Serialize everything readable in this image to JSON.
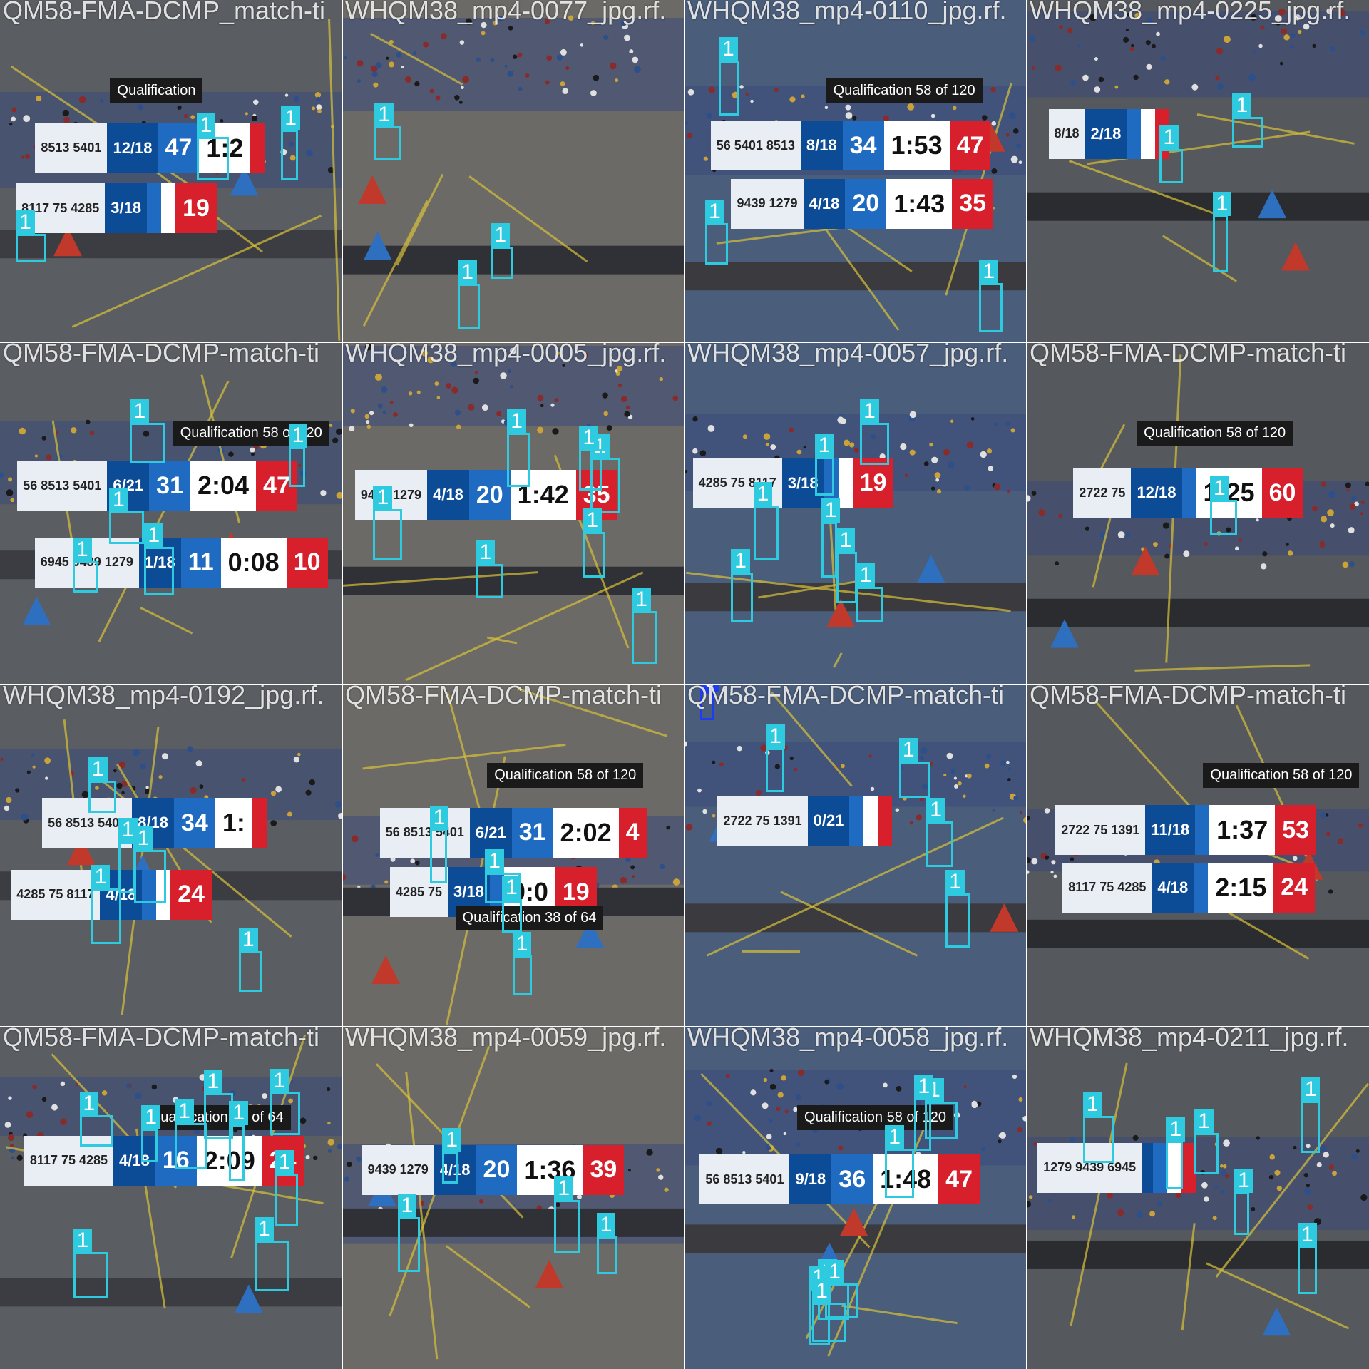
{
  "colors": {
    "box": "#2ecbe0",
    "box_alt": "#1e3df0",
    "blue": "#1f6bc2",
    "red": "#d8202c"
  },
  "detection_label": "1",
  "alt_label": "0",
  "tiles": [
    {
      "filename": "QM58-FMA-DCMP_match-ti",
      "boards": [
        {
          "blue_score": "47",
          "time": "1:2",
          "red_score": "",
          "teams": "8513 5401",
          "frac": "12/18"
        },
        {
          "red_score": "19",
          "time": "",
          "blue_score": "",
          "teams": "8117 75 4285",
          "frac": "3/18"
        }
      ],
      "banners": [
        "Qualification"
      ],
      "boxes": 3
    },
    {
      "filename": "WHQM38_mp4-0077_jpg.rf.",
      "boards": [],
      "banners": [],
      "boxes": 3
    },
    {
      "filename": "WHQM38_mp4-0110_jpg.rf.",
      "boards": [
        {
          "blue_score": "34",
          "time": "1:53",
          "red_score": "47",
          "teams": "56 5401 8513",
          "frac": "8/18"
        },
        {
          "blue_score": "20",
          "time": "1:43",
          "red_score": "35",
          "teams": "9439 1279",
          "frac": "4/18"
        }
      ],
      "banners": [
        "Qualification 58 of 120"
      ],
      "boxes": 3
    },
    {
      "filename": "WHQM38_mp4-0225_jpg.rf.",
      "boards": [
        {
          "blue_score": "",
          "time": "",
          "red_score": "",
          "teams": "8/18",
          "frac": "2/18"
        }
      ],
      "banners": [],
      "boxes": 3
    },
    {
      "filename": "QM58-FMA-DCMP-match-ti",
      "boards": [
        {
          "blue_score": "31",
          "time": "2:04",
          "red_score": "47",
          "teams": "56 8513 5401",
          "frac": "6/21"
        },
        {
          "blue_score": "11",
          "time": "0:08",
          "red_score": "10",
          "teams": "6945 9439 1279",
          "frac": "1/18"
        }
      ],
      "banners": [
        "Qualification 58 of 120"
      ],
      "boxes": 5
    },
    {
      "filename": "WHQM38_mp4-0005_jpg.rf.",
      "boards": [
        {
          "blue_score": "20",
          "time": "1:42",
          "red_score": "35",
          "teams": "9439 1279",
          "frac": "4/18"
        }
      ],
      "banners": [],
      "boxes": 7
    },
    {
      "filename": "WHQM38_mp4-0057_jpg.rf.",
      "boards": [
        {
          "red_score": "19",
          "time": "",
          "blue_score": "",
          "teams": "4285 75 8117",
          "frac": "3/18"
        }
      ],
      "banners": [],
      "boxes": 7
    },
    {
      "filename": "QM58-FMA-DCMP-match-ti",
      "boards": [
        {
          "blue_score": "",
          "time": "1:25",
          "red_score": "60",
          "teams": "2722 75",
          "frac": "12/18"
        }
      ],
      "banners": [
        "Qualification 58 of 120"
      ],
      "boxes": 1
    },
    {
      "filename": "WHQM38_mp4-0192_jpg.rf.",
      "boards": [
        {
          "blue_score": "34",
          "time": "1:",
          "red_score": "",
          "teams": "56 8513 5401",
          "frac": "8/18"
        },
        {
          "red_score": "24",
          "time": "",
          "blue_score": "",
          "teams": "4285 75 8117",
          "frac": "4/18"
        }
      ],
      "banners": [],
      "boxes": 5
    },
    {
      "filename": "QM58-FMA-DCMP-match-ti",
      "boards": [
        {
          "blue_score": "31",
          "time": "2:02",
          "red_score": "4",
          "teams": "56 8513 5401",
          "frac": "6/21"
        },
        {
          "red_score": "19",
          "time": "0:0",
          "blue_score": "",
          "teams": "4285 75",
          "frac": "3/18"
        }
      ],
      "banners": [
        "Qualification 58 of 120",
        "Qualification 38 of 64"
      ],
      "boxes": 4
    },
    {
      "filename": "QM58-FMA-DCMP-match-ti",
      "boards": [
        {
          "blue_score": "",
          "time": "",
          "red_score": "",
          "teams": "2722 75 1391",
          "frac": "0/21"
        }
      ],
      "banners": [],
      "boxes": 4
    },
    {
      "filename": "QM58-FMA-DCMP-match-ti",
      "boards": [
        {
          "blue_score": "",
          "time": "1:37",
          "red_score": "53",
          "teams": "2722 75 1391",
          "frac": "11/18"
        },
        {
          "blue_score": "",
          "time": "2:15",
          "red_score": "24",
          "teams": "8117 75 4285",
          "frac": "4/18"
        }
      ],
      "banners": [
        "Qualification 58 of 120"
      ],
      "boxes": 0
    },
    {
      "filename": "QM58-FMA-DCMP-match-ti",
      "boards": [
        {
          "blue_score": "16",
          "time": "2:09",
          "red_score": "24",
          "teams": "8117 75 4285",
          "frac": "4/18"
        }
      ],
      "banners": [
        "Qualification 38 of 64"
      ],
      "boxes": 9
    },
    {
      "filename": "WHQM38_mp4-0059_jpg.rf.",
      "boards": [
        {
          "blue_score": "20",
          "time": "1:36",
          "red_score": "39",
          "teams": "9439 1279",
          "frac": "4/18"
        }
      ],
      "banners": [],
      "boxes": 4
    },
    {
      "filename": "WHQM38_mp4-0058_jpg.rf.",
      "boards": [
        {
          "blue_score": "36",
          "time": "1:48",
          "red_score": "47",
          "teams": "56 8513 5401",
          "frac": "9/18"
        }
      ],
      "banners": [
        "Qualification 58 of 120"
      ],
      "boxes": 7
    },
    {
      "filename": "WHQM38_mp4-0211_jpg.rf.",
      "boards": [
        {
          "blue_score": "",
          "time": "",
          "red_score": "",
          "teams": "1279 9439 6945",
          "frac": ""
        }
      ],
      "banners": [],
      "boxes": 6
    }
  ]
}
